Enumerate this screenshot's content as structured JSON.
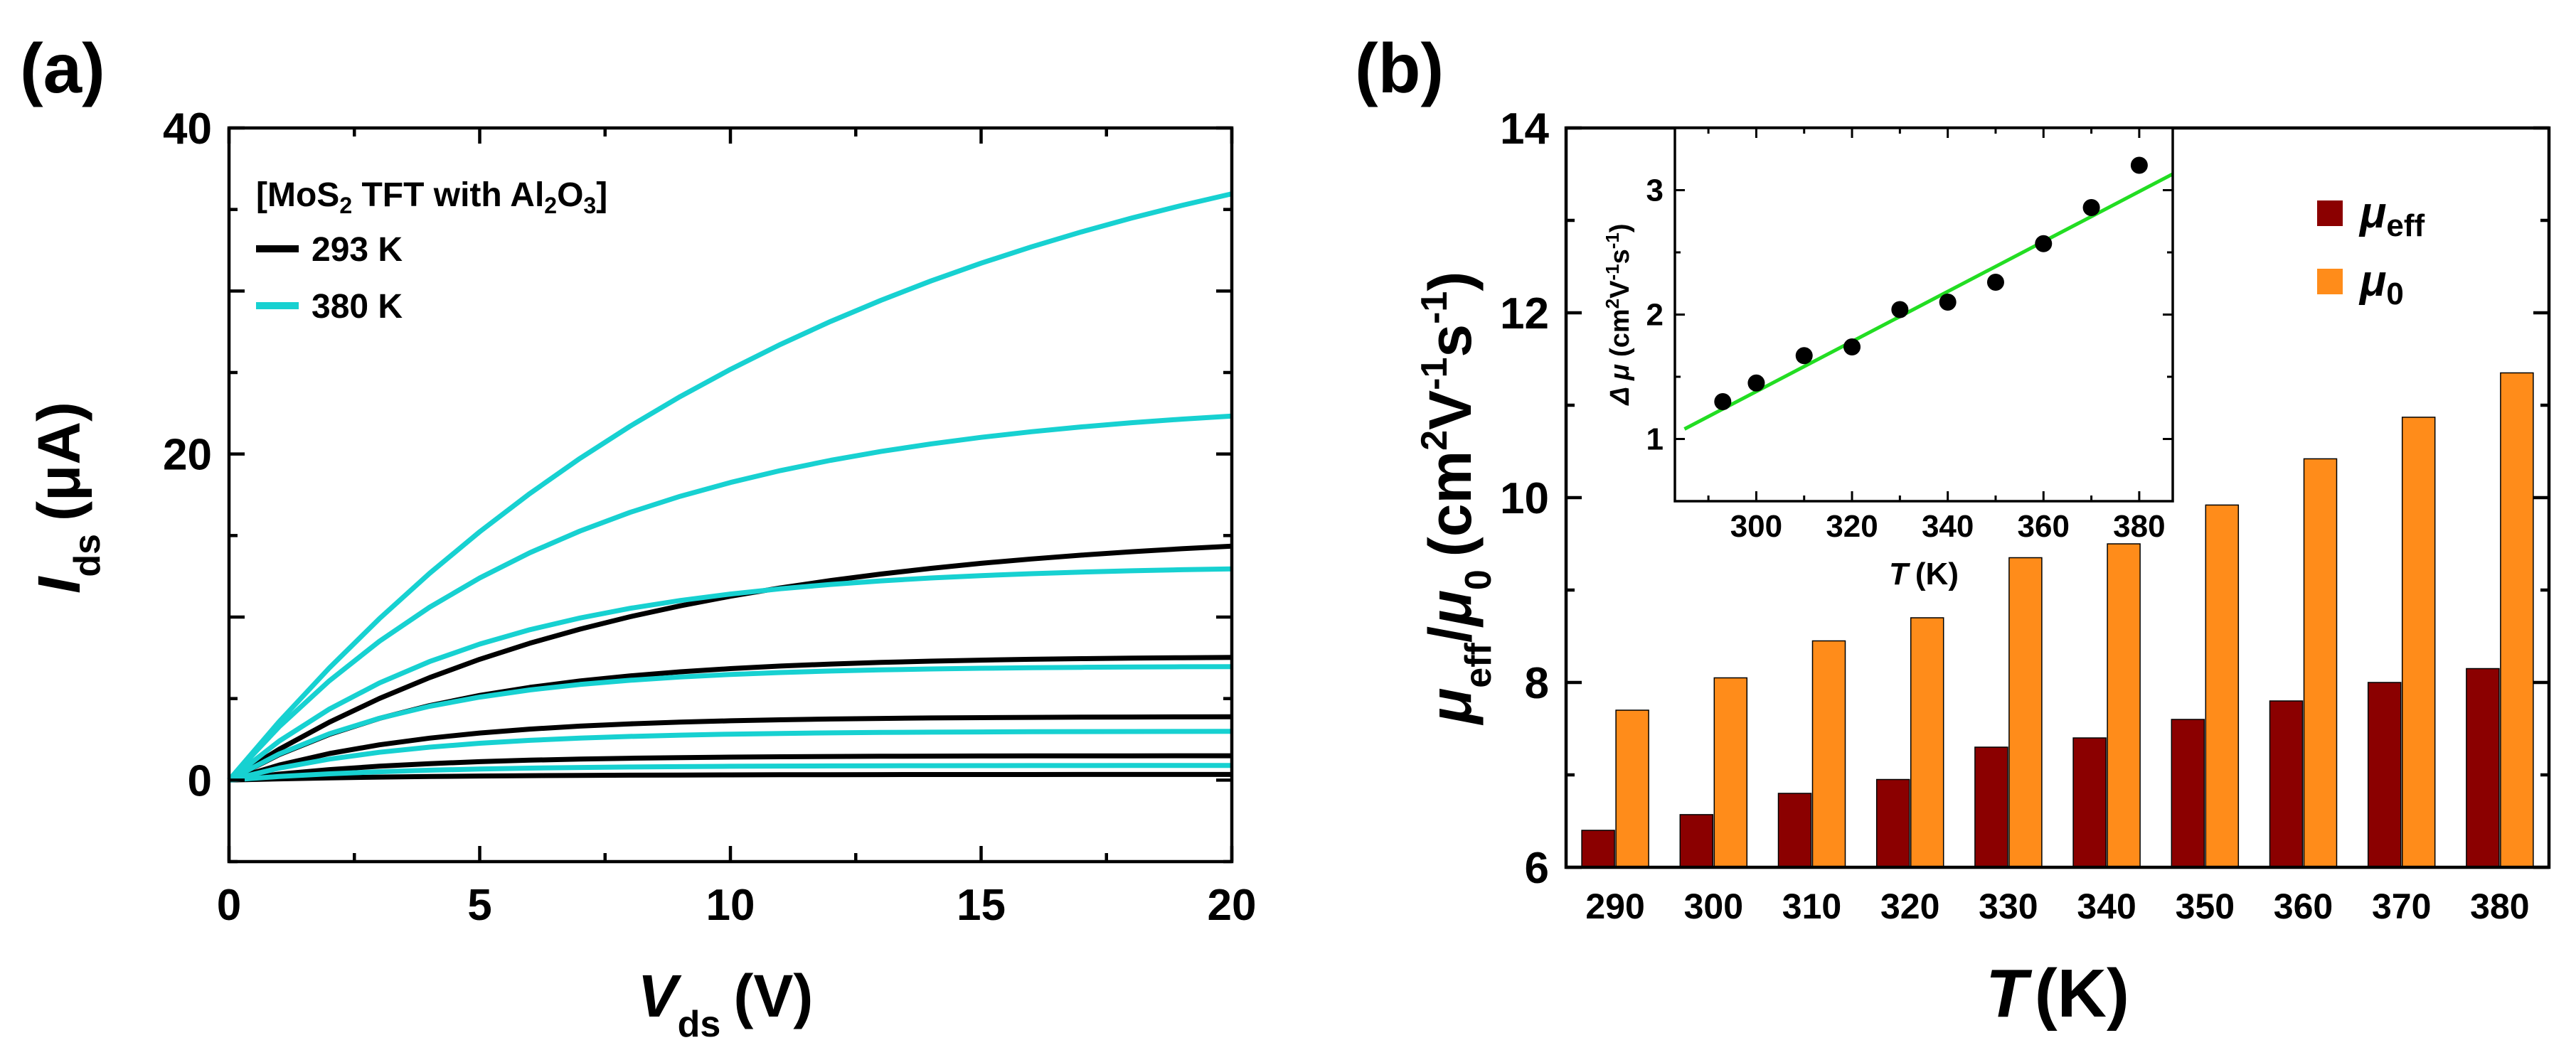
{
  "chart_data": [
    {
      "panel": "(a)",
      "type": "line",
      "title": "",
      "xlabel": {
        "main": "V",
        "sub": "ds",
        "unit": "(V)"
      },
      "ylabel": {
        "main": "I",
        "sub": "ds",
        "unit": "(μA)"
      },
      "xlim": [
        0,
        20
      ],
      "ylim": [
        -5,
        40
      ],
      "xticks": [
        0,
        5,
        10,
        15,
        20
      ],
      "yticks": [
        0,
        20,
        40
      ],
      "legend": {
        "title_parts": [
          "[MoS",
          "2",
          " TFT with Al",
          "2",
          "O",
          "3",
          "]"
        ],
        "position": "top-left",
        "entries": [
          {
            "label": "293 K",
            "color": "#000000"
          },
          {
            "label": "380 K",
            "color": "#17d1d1"
          }
        ]
      },
      "x": [
        0,
        1,
        2,
        3,
        4,
        5,
        6,
        7,
        8,
        9,
        10,
        11,
        12,
        13,
        14,
        15,
        16,
        17,
        18,
        19,
        20
      ],
      "series": [
        {
          "name": "293 K",
          "color": "#000000",
          "isat": 15.5,
          "k": 0.13
        },
        {
          "name": "293 K",
          "color": "#000000",
          "isat": 7.6,
          "k": 0.23
        },
        {
          "name": "293 K",
          "color": "#000000",
          "isat": 3.9,
          "k": 0.27
        },
        {
          "name": "293 K",
          "color": "#000000",
          "isat": 1.5,
          "k": 0.28
        },
        {
          "name": "293 K",
          "color": "#000000",
          "isat": 0.35,
          "k": 0.25
        },
        {
          "name": "380 K",
          "color": "#17d1d1",
          "isat": 44.0,
          "k": 0.085
        },
        {
          "name": "380 K",
          "color": "#17d1d1",
          "isat": 23.5,
          "k": 0.15
        },
        {
          "name": "380 K",
          "color": "#17d1d1",
          "isat": 13.2,
          "k": 0.2
        },
        {
          "name": "380 K",
          "color": "#17d1d1",
          "isat": 7.0,
          "k": 0.26
        },
        {
          "name": "380 K",
          "color": "#17d1d1",
          "isat": 3.0,
          "k": 0.28
        },
        {
          "name": "380 K",
          "color": "#17d1d1",
          "isat": 0.9,
          "k": 0.28
        }
      ]
    },
    {
      "panel": "(b)",
      "type": "bar",
      "title": "",
      "xlabel": {
        "main": "T",
        "unit": "(K)"
      },
      "ylabel": {
        "mu1": "μ",
        "sub1": "eff",
        "slash": "/",
        "mu2": "μ",
        "sub2": "0",
        "unit_a": "(cm",
        "sup_a": "2",
        "unit_b": "V",
        "sup_b": "-1",
        "unit_c": "s",
        "sup_c": "-1",
        "unit_d": ")"
      },
      "categories": [
        "290",
        "300",
        "310",
        "320",
        "330",
        "340",
        "350",
        "360",
        "370",
        "380"
      ],
      "ylim": [
        6,
        14
      ],
      "yticks": [
        6,
        8,
        10,
        12,
        14
      ],
      "legend": {
        "position": "top-right",
        "entries": [
          {
            "mu": "μ",
            "sub": "eff",
            "color": "#8b0000"
          },
          {
            "mu": "μ",
            "sub": "0",
            "color": "#ff8c1a"
          }
        ]
      },
      "series": [
        {
          "name": "μ_eff",
          "color": "#8b0000",
          "values": [
            6.4,
            6.57,
            6.8,
            6.95,
            7.3,
            7.4,
            7.6,
            7.8,
            8.0,
            8.15
          ]
        },
        {
          "name": "μ_0",
          "color": "#ff8c1a",
          "values": [
            7.7,
            8.05,
            8.45,
            8.7,
            9.35,
            9.5,
            9.92,
            10.42,
            10.87,
            11.35
          ]
        }
      ],
      "inset": {
        "type": "scatter",
        "xlabel": {
          "main": "T",
          "unit": "(K)"
        },
        "ylabel": {
          "main": "Δ μ",
          "unit_a": "(cm",
          "sup_a": "2",
          "unit_b": "V",
          "sup_b": "-1",
          "unit_c": "s",
          "sup_c": "-1",
          "unit_d": ")"
        },
        "xlim": [
          283,
          387
        ],
        "ylim": [
          0.5,
          3.5
        ],
        "xticks": [
          300,
          320,
          340,
          360,
          380
        ],
        "yticks": [
          1,
          2,
          3
        ],
        "x": [
          293,
          300,
          310,
          320,
          330,
          340,
          350,
          360,
          370,
          380
        ],
        "y": [
          1.3,
          1.45,
          1.67,
          1.74,
          2.04,
          2.1,
          2.26,
          2.57,
          2.86,
          3.2
        ],
        "fit": {
          "color": "#22dd22",
          "x": [
            285,
            387
          ],
          "y": [
            1.08,
            3.13
          ]
        }
      }
    }
  ]
}
